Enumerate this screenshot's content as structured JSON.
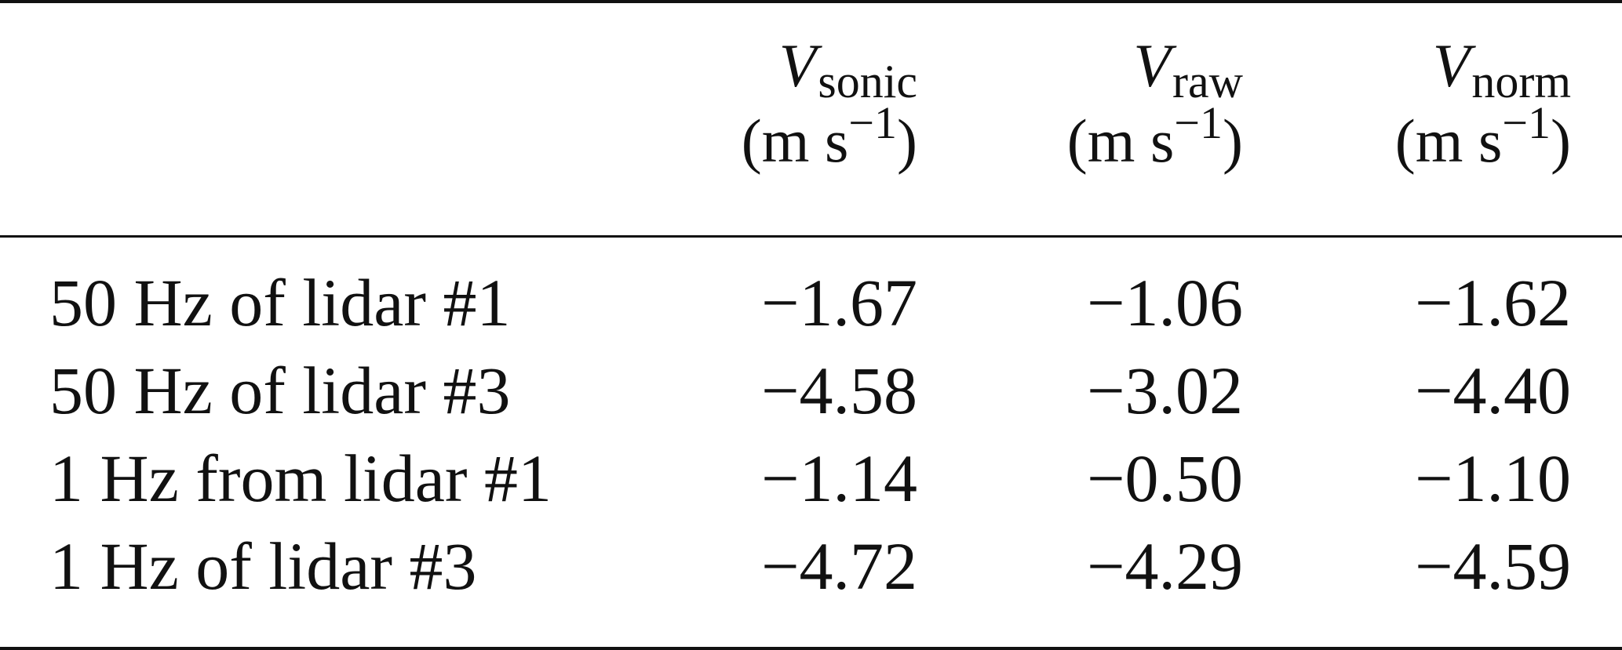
{
  "table": {
    "columns": [
      {
        "var": "V",
        "sub": "sonic",
        "unit_open": "(m s",
        "unit_sup": "−1",
        "unit_close": ")"
      },
      {
        "var": "V",
        "sub": "raw",
        "unit_open": "(m s",
        "unit_sup": "−1",
        "unit_close": ")"
      },
      {
        "var": "V",
        "sub": "norm",
        "unit_open": "(m s",
        "unit_sup": "−1",
        "unit_close": ")"
      }
    ],
    "rows": [
      {
        "label": "50 Hz of lidar #1",
        "values": [
          "−1.67",
          "−1.06",
          "−1.62"
        ]
      },
      {
        "label": "50 Hz of lidar #3",
        "values": [
          "−4.58",
          "−3.02",
          "−4.40"
        ]
      },
      {
        "label": "1 Hz from lidar #1",
        "values": [
          "−1.14",
          "−0.50",
          "−1.10"
        ]
      },
      {
        "label": "1 Hz of lidar #3",
        "values": [
          "−4.72",
          "−4.29",
          "−4.59"
        ]
      }
    ]
  }
}
